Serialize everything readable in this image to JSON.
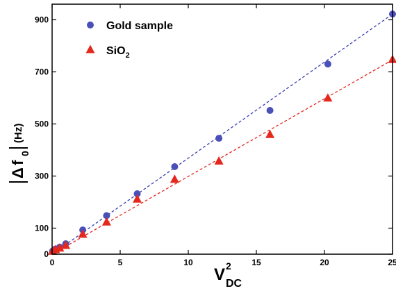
{
  "chart_data": {
    "type": "scatter",
    "xlabel": {
      "main": "V",
      "superscript": "2",
      "subscript": "DC"
    },
    "ylabel": {
      "delta": "Δ",
      "f": "f",
      "subscript": "0",
      "unit": "(Hz)"
    },
    "xlim": [
      0,
      25
    ],
    "ylim": [
      0,
      960
    ],
    "xticks": [
      0,
      5,
      10,
      15,
      20,
      25
    ],
    "xtick_labels": [
      "0",
      "5",
      "10",
      "15",
      "20",
      "25"
    ],
    "yticks": [
      0,
      100,
      300,
      500,
      700,
      900
    ],
    "ytick_labels": [
      "0",
      "100",
      "300",
      "500",
      "700",
      "900"
    ],
    "grid": false,
    "legend_position": "top-left",
    "series": [
      {
        "name": "Gold sample",
        "name_sub": "",
        "marker": "circle",
        "color": "#4a50b8",
        "fit_color": "#3a3fb0",
        "x": [
          0.04,
          0.25,
          0.56,
          1.0,
          2.25,
          4.0,
          6.25,
          9.0,
          12.25,
          16.0,
          20.25,
          25.0
        ],
        "y": [
          12,
          20,
          27,
          40,
          93,
          148,
          232,
          336,
          445,
          552,
          730,
          922
        ],
        "fit": {
          "x": [
            0,
            25
          ],
          "y": [
            0,
            922
          ]
        }
      },
      {
        "name": "SiO",
        "name_sub": "2",
        "marker": "triangle",
        "color": "#e4281e",
        "fit_color": "#e4281e",
        "x": [
          0.04,
          0.25,
          0.56,
          1.0,
          2.25,
          4.0,
          6.25,
          9.0,
          12.25,
          16.0,
          20.25,
          25.0
        ],
        "y": [
          10,
          16,
          22,
          32,
          75,
          122,
          210,
          286,
          356,
          458,
          598,
          746
        ],
        "fit": {
          "x": [
            0,
            25
          ],
          "y": [
            0,
            746
          ]
        }
      }
    ]
  }
}
